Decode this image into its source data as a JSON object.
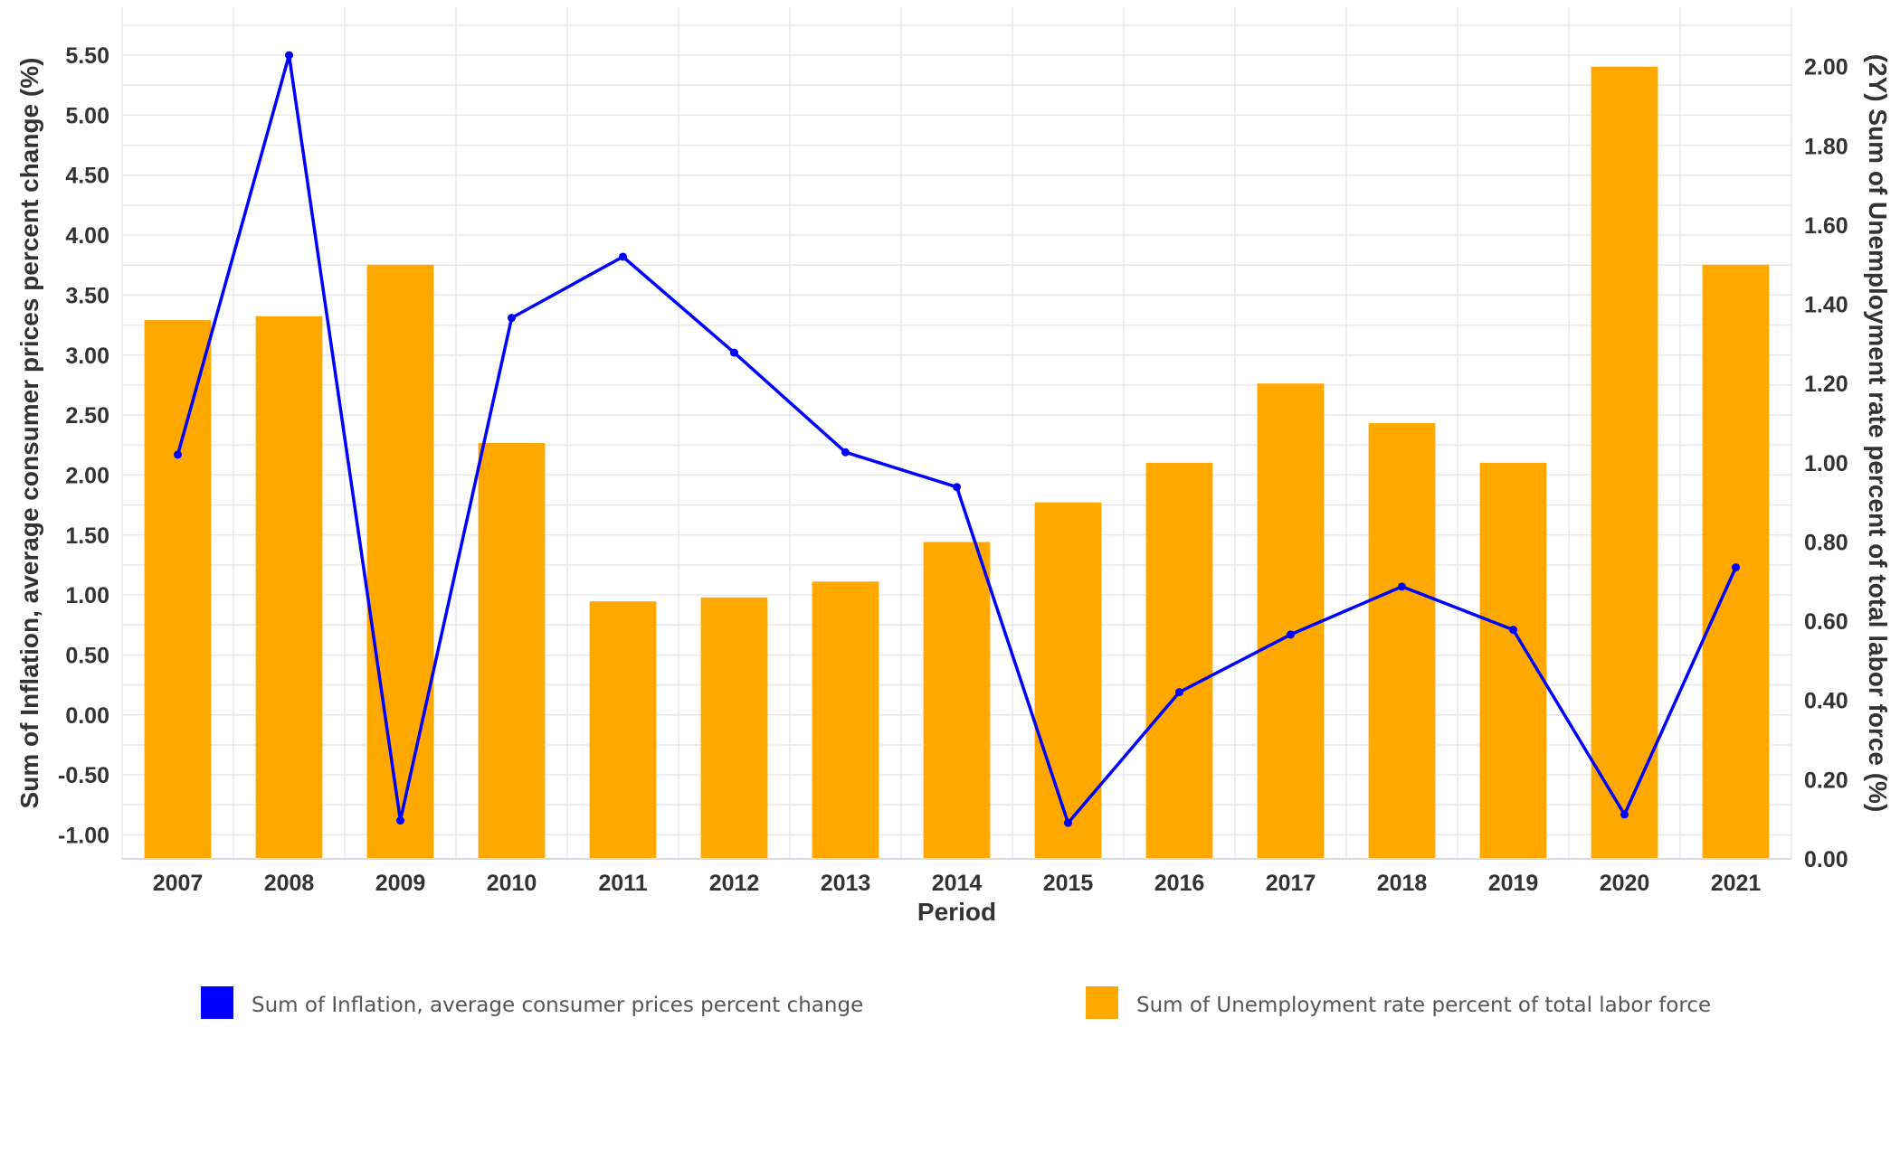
{
  "chart_data": {
    "type": "bar",
    "categories": [
      "2007",
      "2008",
      "2009",
      "2010",
      "2011",
      "2012",
      "2013",
      "2014",
      "2015",
      "2016",
      "2017",
      "2018",
      "2019",
      "2020",
      "2021"
    ],
    "xlabel": "Period",
    "ylabel": "Sum of Inflation, average consumer prices percent change (%)",
    "y2label": "(2Y) Sum of Unemployment rate percent of total labor force (%)",
    "ylim": [
      -1.2,
      5.9
    ],
    "y2lim": [
      0,
      2.15
    ],
    "yticks": [
      "-1.00",
      "-0.50",
      "0.00",
      "0.50",
      "1.00",
      "1.50",
      "2.00",
      "2.50",
      "3.00",
      "3.50",
      "4.00",
      "4.50",
      "5.00",
      "5.50"
    ],
    "y2ticks": [
      "0.00",
      "0.20",
      "0.40",
      "0.60",
      "0.80",
      "1.00",
      "1.20",
      "1.40",
      "1.60",
      "1.80",
      "2.00"
    ],
    "grid": true,
    "legend_position": "bottom",
    "series": [
      {
        "name": "Sum of Inflation, average consumer prices percent change",
        "type": "line",
        "axis": "left",
        "color": "#0000FF",
        "values": [
          2.17,
          5.5,
          -0.88,
          3.31,
          3.82,
          3.02,
          2.19,
          1.9,
          -0.9,
          0.19,
          0.67,
          1.07,
          0.71,
          -0.83,
          1.23
        ]
      },
      {
        "name": "Sum of Unemployment rate percent of total labor force",
        "type": "bar",
        "axis": "right",
        "color": "#FFA800",
        "values": [
          1.36,
          1.37,
          1.5,
          1.05,
          0.65,
          0.66,
          0.7,
          0.8,
          0.9,
          1.0,
          1.2,
          1.1,
          1.0,
          2.0,
          1.5
        ]
      }
    ]
  }
}
